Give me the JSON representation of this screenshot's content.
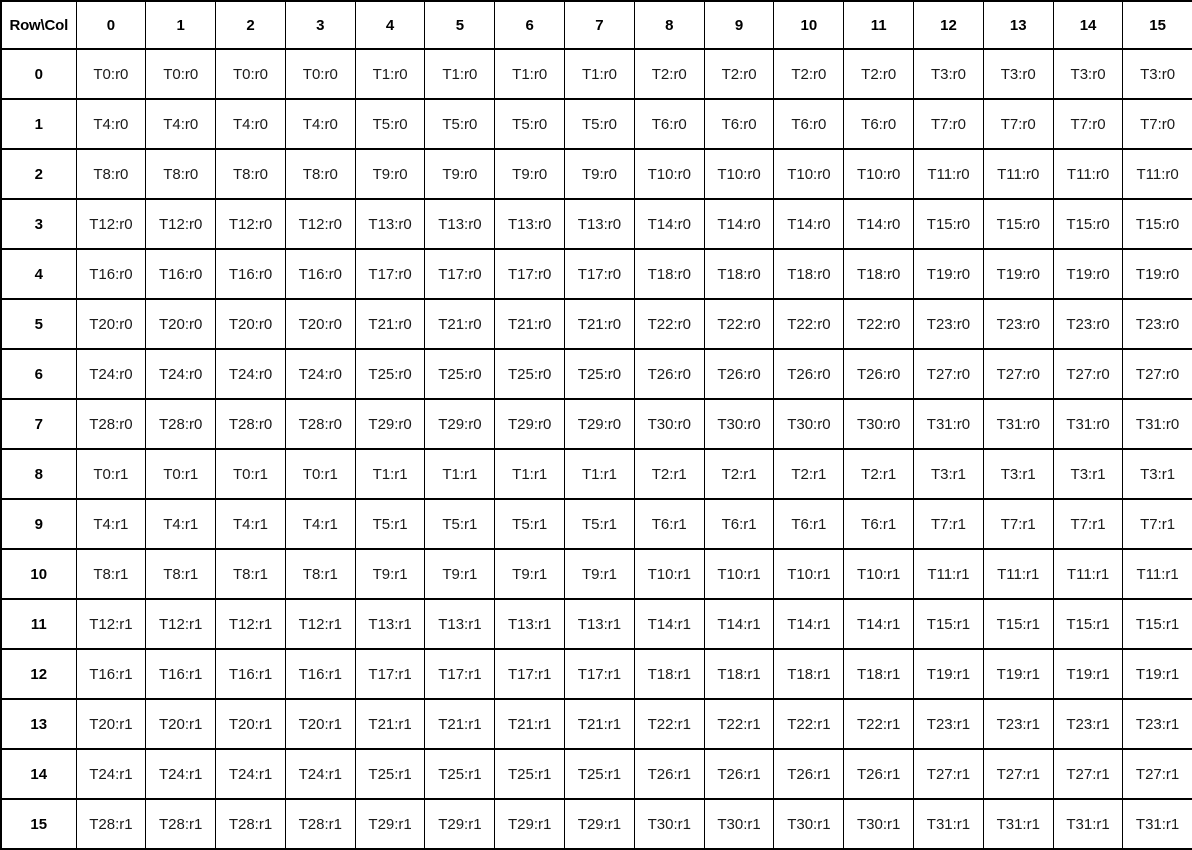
{
  "table": {
    "corner_label": "Row\\Col",
    "col_headers": [
      "0",
      "1",
      "2",
      "3",
      "4",
      "5",
      "6",
      "7",
      "8",
      "9",
      "10",
      "11",
      "12",
      "13",
      "14",
      "15"
    ],
    "rows": [
      {
        "header": "0",
        "cells": [
          "T0:r0",
          "T0:r0",
          "T0:r0",
          "T0:r0",
          "T1:r0",
          "T1:r0",
          "T1:r0",
          "T1:r0",
          "T2:r0",
          "T2:r0",
          "T2:r0",
          "T2:r0",
          "T3:r0",
          "T3:r0",
          "T3:r0",
          "T3:r0"
        ]
      },
      {
        "header": "1",
        "cells": [
          "T4:r0",
          "T4:r0",
          "T4:r0",
          "T4:r0",
          "T5:r0",
          "T5:r0",
          "T5:r0",
          "T5:r0",
          "T6:r0",
          "T6:r0",
          "T6:r0",
          "T6:r0",
          "T7:r0",
          "T7:r0",
          "T7:r0",
          "T7:r0"
        ]
      },
      {
        "header": "2",
        "cells": [
          "T8:r0",
          "T8:r0",
          "T8:r0",
          "T8:r0",
          "T9:r0",
          "T9:r0",
          "T9:r0",
          "T9:r0",
          "T10:r0",
          "T10:r0",
          "T10:r0",
          "T10:r0",
          "T11:r0",
          "T11:r0",
          "T11:r0",
          "T11:r0"
        ]
      },
      {
        "header": "3",
        "cells": [
          "T12:r0",
          "T12:r0",
          "T12:r0",
          "T12:r0",
          "T13:r0",
          "T13:r0",
          "T13:r0",
          "T13:r0",
          "T14:r0",
          "T14:r0",
          "T14:r0",
          "T14:r0",
          "T15:r0",
          "T15:r0",
          "T15:r0",
          "T15:r0"
        ]
      },
      {
        "header": "4",
        "cells": [
          "T16:r0",
          "T16:r0",
          "T16:r0",
          "T16:r0",
          "T17:r0",
          "T17:r0",
          "T17:r0",
          "T17:r0",
          "T18:r0",
          "T18:r0",
          "T18:r0",
          "T18:r0",
          "T19:r0",
          "T19:r0",
          "T19:r0",
          "T19:r0"
        ]
      },
      {
        "header": "5",
        "cells": [
          "T20:r0",
          "T20:r0",
          "T20:r0",
          "T20:r0",
          "T21:r0",
          "T21:r0",
          "T21:r0",
          "T21:r0",
          "T22:r0",
          "T22:r0",
          "T22:r0",
          "T22:r0",
          "T23:r0",
          "T23:r0",
          "T23:r0",
          "T23:r0"
        ]
      },
      {
        "header": "6",
        "cells": [
          "T24:r0",
          "T24:r0",
          "T24:r0",
          "T24:r0",
          "T25:r0",
          "T25:r0",
          "T25:r0",
          "T25:r0",
          "T26:r0",
          "T26:r0",
          "T26:r0",
          "T26:r0",
          "T27:r0",
          "T27:r0",
          "T27:r0",
          "T27:r0"
        ]
      },
      {
        "header": "7",
        "cells": [
          "T28:r0",
          "T28:r0",
          "T28:r0",
          "T28:r0",
          "T29:r0",
          "T29:r0",
          "T29:r0",
          "T29:r0",
          "T30:r0",
          "T30:r0",
          "T30:r0",
          "T30:r0",
          "T31:r0",
          "T31:r0",
          "T31:r0",
          "T31:r0"
        ]
      },
      {
        "header": "8",
        "cells": [
          "T0:r1",
          "T0:r1",
          "T0:r1",
          "T0:r1",
          "T1:r1",
          "T1:r1",
          "T1:r1",
          "T1:r1",
          "T2:r1",
          "T2:r1",
          "T2:r1",
          "T2:r1",
          "T3:r1",
          "T3:r1",
          "T3:r1",
          "T3:r1"
        ]
      },
      {
        "header": "9",
        "cells": [
          "T4:r1",
          "T4:r1",
          "T4:r1",
          "T4:r1",
          "T5:r1",
          "T5:r1",
          "T5:r1",
          "T5:r1",
          "T6:r1",
          "T6:r1",
          "T6:r1",
          "T6:r1",
          "T7:r1",
          "T7:r1",
          "T7:r1",
          "T7:r1"
        ]
      },
      {
        "header": "10",
        "cells": [
          "T8:r1",
          "T8:r1",
          "T8:r1",
          "T8:r1",
          "T9:r1",
          "T9:r1",
          "T9:r1",
          "T9:r1",
          "T10:r1",
          "T10:r1",
          "T10:r1",
          "T10:r1",
          "T11:r1",
          "T11:r1",
          "T11:r1",
          "T11:r1"
        ]
      },
      {
        "header": "11",
        "cells": [
          "T12:r1",
          "T12:r1",
          "T12:r1",
          "T12:r1",
          "T13:r1",
          "T13:r1",
          "T13:r1",
          "T13:r1",
          "T14:r1",
          "T14:r1",
          "T14:r1",
          "T14:r1",
          "T15:r1",
          "T15:r1",
          "T15:r1",
          "T15:r1"
        ]
      },
      {
        "header": "12",
        "cells": [
          "T16:r1",
          "T16:r1",
          "T16:r1",
          "T16:r1",
          "T17:r1",
          "T17:r1",
          "T17:r1",
          "T17:r1",
          "T18:r1",
          "T18:r1",
          "T18:r1",
          "T18:r1",
          "T19:r1",
          "T19:r1",
          "T19:r1",
          "T19:r1"
        ]
      },
      {
        "header": "13",
        "cells": [
          "T20:r1",
          "T20:r1",
          "T20:r1",
          "T20:r1",
          "T21:r1",
          "T21:r1",
          "T21:r1",
          "T21:r1",
          "T22:r1",
          "T22:r1",
          "T22:r1",
          "T22:r1",
          "T23:r1",
          "T23:r1",
          "T23:r1",
          "T23:r1"
        ]
      },
      {
        "header": "14",
        "cells": [
          "T24:r1",
          "T24:r1",
          "T24:r1",
          "T24:r1",
          "T25:r1",
          "T25:r1",
          "T25:r1",
          "T25:r1",
          "T26:r1",
          "T26:r1",
          "T26:r1",
          "T26:r1",
          "T27:r1",
          "T27:r1",
          "T27:r1",
          "T27:r1"
        ]
      },
      {
        "header": "15",
        "cells": [
          "T28:r1",
          "T28:r1",
          "T28:r1",
          "T28:r1",
          "T29:r1",
          "T29:r1",
          "T29:r1",
          "T29:r1",
          "T30:r1",
          "T30:r1",
          "T30:r1",
          "T30:r1",
          "T31:r1",
          "T31:r1",
          "T31:r1",
          "T31:r1"
        ]
      }
    ]
  },
  "colors": {
    "border": "#000000",
    "header_text": "#000000",
    "cell_text": "#1a1a1a",
    "background": "#ffffff"
  }
}
